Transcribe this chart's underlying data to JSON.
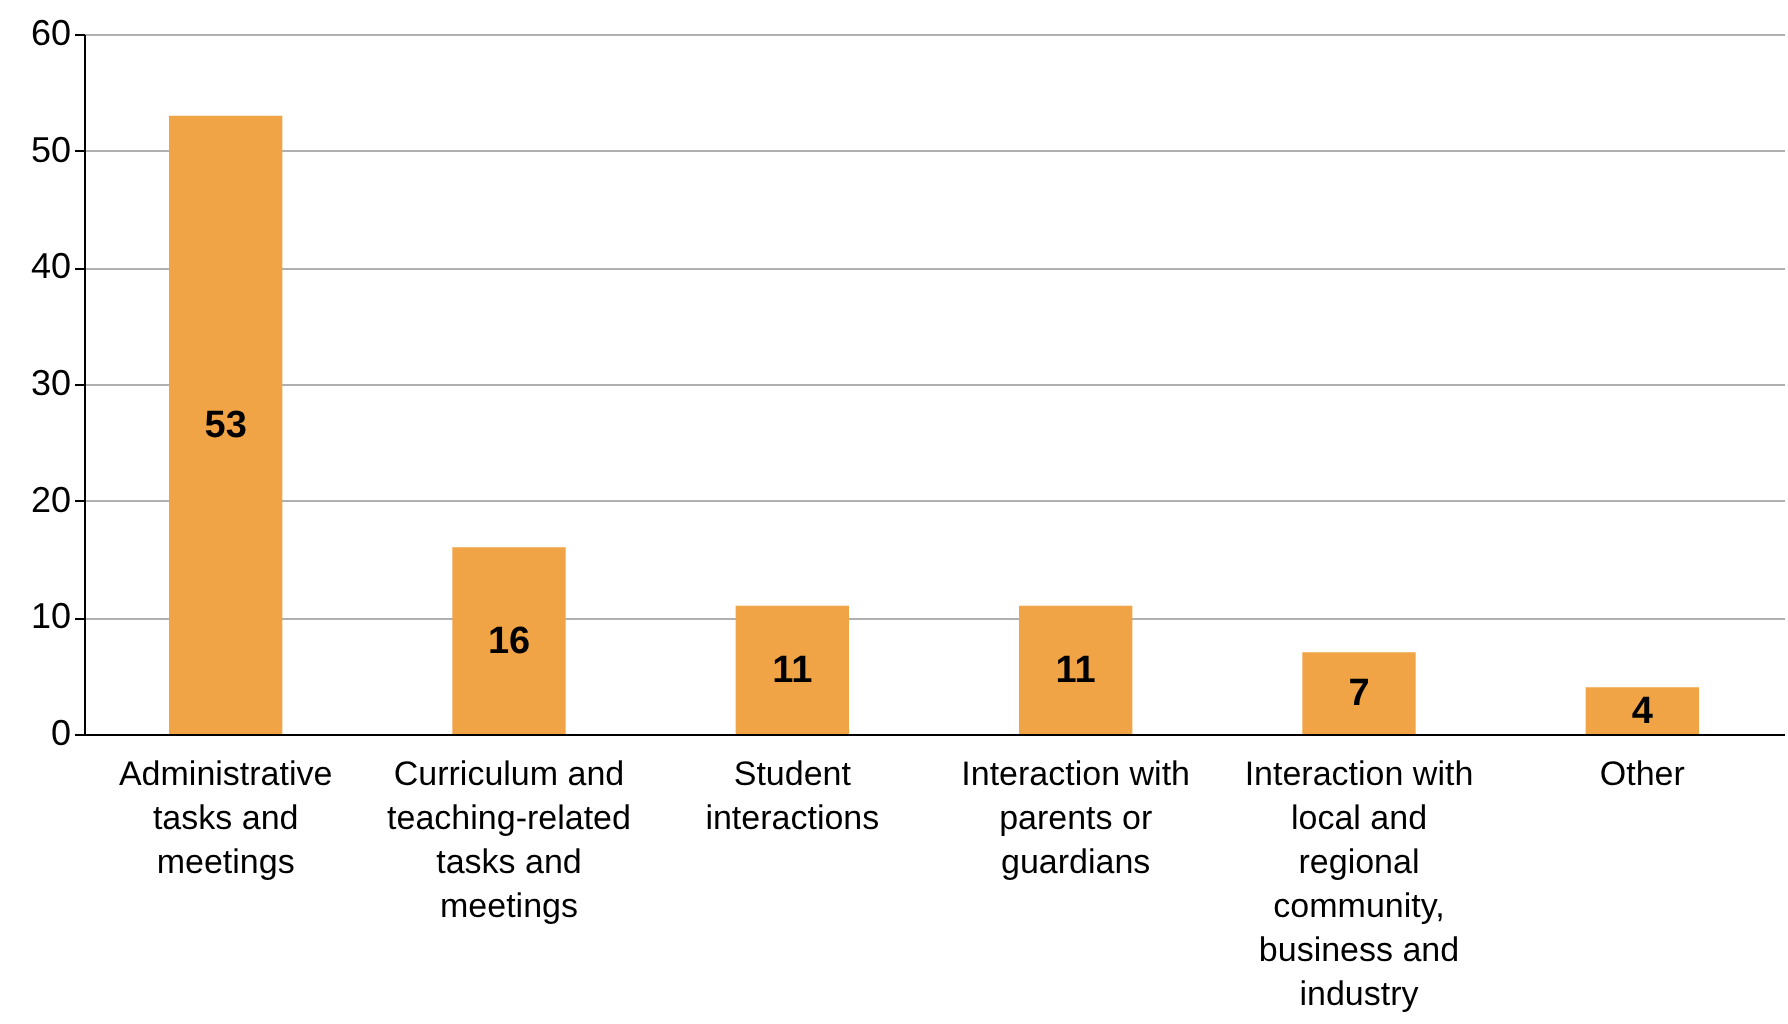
{
  "chart_data": {
    "type": "bar",
    "categories": [
      "Administrative tasks and meetings",
      "Curriculum and teaching-related tasks and meetings",
      "Student interactions",
      "Interaction with parents or guardians",
      "Interaction with local and regional community, business and industry",
      "Other"
    ],
    "values": [
      53,
      16,
      11,
      11,
      7,
      4
    ],
    "color": "#f0a445",
    "ylim": [
      0,
      60
    ],
    "yticks": [
      0,
      10,
      20,
      30,
      40,
      50,
      60
    ],
    "grid": "y",
    "data_labels": true
  }
}
